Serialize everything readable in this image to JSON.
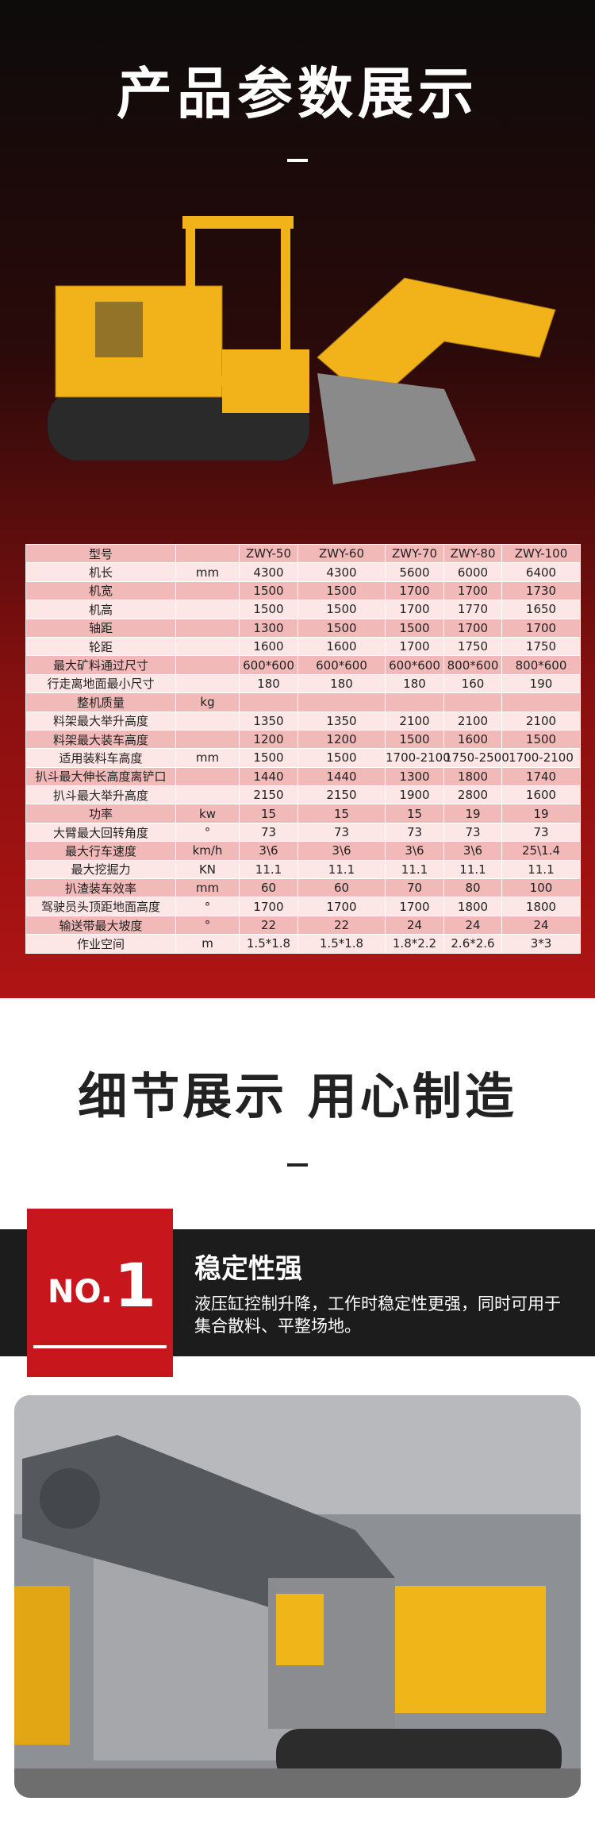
{
  "header": {
    "title": "产品参数展示"
  },
  "table": {
    "header": [
      "型号",
      null,
      "ZWY-50",
      "ZWY-60",
      "ZWY-70",
      "ZWY-80",
      "ZWY-100"
    ],
    "rows": [
      [
        "机长",
        "mm",
        "4300",
        "4300",
        "5600",
        "6000",
        "6400"
      ],
      [
        "机宽",
        null,
        "1500",
        "1500",
        "1700",
        "1700",
        "1730"
      ],
      [
        "机高",
        null,
        "1500",
        "1500",
        "1700",
        "1770",
        "1650"
      ],
      [
        "轴距",
        null,
        "1300",
        "1500",
        "1500",
        "1700",
        "1700"
      ],
      [
        "轮距",
        null,
        "1600",
        "1600",
        "1700",
        "1750",
        "1750"
      ],
      [
        "最大矿料通过尺寸",
        null,
        "600*600",
        "600*600",
        "600*600",
        "800*600",
        "800*600"
      ],
      [
        "行走离地面最小尺寸",
        null,
        "180",
        "180",
        "180",
        "160",
        "190"
      ],
      [
        "整机质量",
        "kg",
        null,
        null,
        null,
        null,
        null
      ],
      [
        "料架最大举升高度",
        null,
        "1350",
        "1350",
        "2100",
        "2100",
        "2100"
      ],
      [
        "料架最大装车高度",
        null,
        "1200",
        "1200",
        "1500",
        "1600",
        "1500"
      ],
      [
        "适用装料车高度",
        "mm",
        "1500",
        "1500",
        "1700-2100",
        "1750-2500",
        "1700-2100"
      ],
      [
        "扒斗最大伸长高度离铲口",
        null,
        "1440",
        "1440",
        "1300",
        "1800",
        "1740"
      ],
      [
        "扒斗最大举升高度",
        null,
        "2150",
        "2150",
        "1900",
        "2800",
        "1600"
      ],
      [
        "功率",
        "kw",
        "15",
        "15",
        "15",
        "19",
        "19"
      ],
      [
        "大臂最大回转角度",
        "°",
        "73",
        "73",
        "73",
        "73",
        "73"
      ],
      [
        "最大行车速度",
        "km/h",
        "3\\6",
        "3\\6",
        "3\\6",
        "3\\6",
        "25\\1.4"
      ],
      [
        "最大挖掘力",
        "KN",
        "11.1",
        "11.1",
        "11.1",
        "11.1",
        "11.1"
      ],
      [
        "扒渣装车效率",
        "mm",
        "60",
        "60",
        "70",
        "80",
        "100"
      ],
      [
        "驾驶员头顶距地面高度",
        "°",
        "1700",
        "1700",
        "1700",
        "1800",
        "1800"
      ],
      [
        "输送带最大坡度",
        "°",
        "22",
        "22",
        "24",
        "24",
        "24"
      ],
      [
        "作业空间",
        "m",
        "1.5*1.8",
        "1.5*1.8",
        "1.8*2.2",
        "2.6*2.6",
        "3*3"
      ]
    ]
  },
  "detail": {
    "title": "细节展示 用心制造",
    "badge_prefix": "NO.",
    "badge_number": "1",
    "feature_title": "稳定性强",
    "feature_text": "液压缸控制升降，工作时稳定性更强，同时可用于集合散料、平整场地。"
  }
}
